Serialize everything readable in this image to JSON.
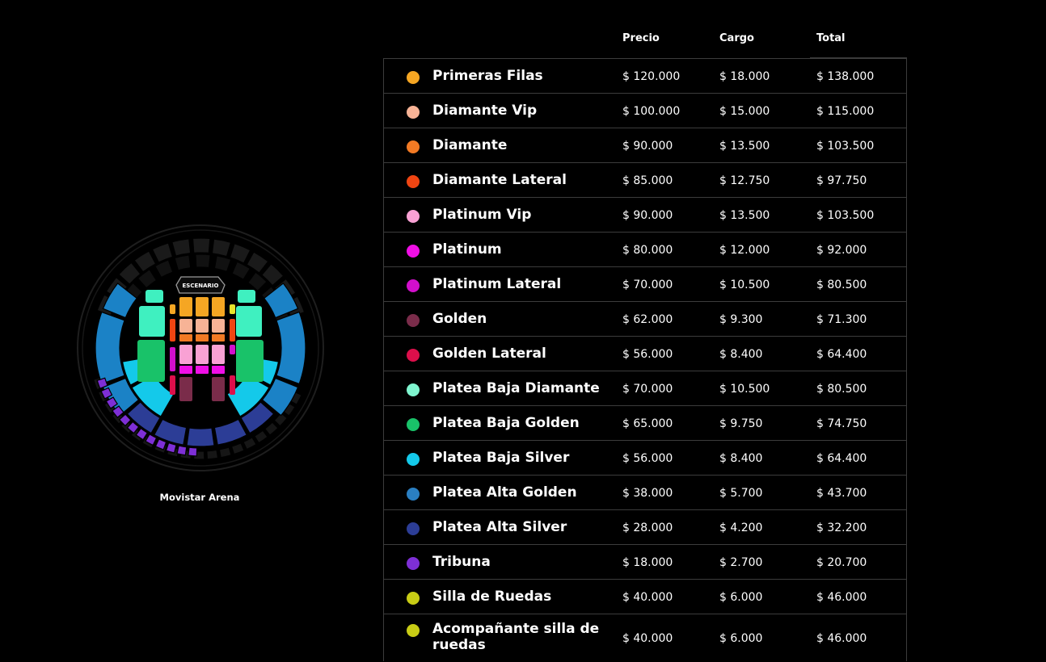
{
  "venue": {
    "name": "Movistar Arena",
    "stage_label": "ESCENARIO"
  },
  "table": {
    "headers": {
      "price": "Precio",
      "fee": "Cargo",
      "total": "Total"
    },
    "rows": [
      {
        "name": "Primeras Filas",
        "color": "#f5a623",
        "price": "$ 120.000",
        "fee": "$ 18.000",
        "total": "$ 138.000"
      },
      {
        "name": "Diamante Vip",
        "color": "#f7b396",
        "price": "$ 100.000",
        "fee": "$ 15.000",
        "total": "$ 115.000"
      },
      {
        "name": "Diamante",
        "color": "#f27a24",
        "price": "$ 90.000",
        "fee": "$ 13.500",
        "total": "$ 103.500"
      },
      {
        "name": "Diamante Lateral",
        "color": "#f04512",
        "price": "$ 85.000",
        "fee": "$ 12.750",
        "total": "$ 97.750"
      },
      {
        "name": "Platinum Vip",
        "color": "#f9a1d4",
        "price": "$ 90.000",
        "fee": "$ 13.500",
        "total": "$ 103.500"
      },
      {
        "name": "Platinum",
        "color": "#f00fe6",
        "price": "$ 80.000",
        "fee": "$ 12.000",
        "total": "$ 92.000"
      },
      {
        "name": "Platinum Lateral",
        "color": "#d20fcc",
        "price": "$ 70.000",
        "fee": "$ 10.500",
        "total": "$ 80.500"
      },
      {
        "name": "Golden",
        "color": "#7a2c4a",
        "price": "$ 62.000",
        "fee": "$ 9.300",
        "total": "$ 71.300"
      },
      {
        "name": "Golden Lateral",
        "color": "#dc0f4b",
        "price": "$ 56.000",
        "fee": "$ 8.400",
        "total": "$ 64.400"
      },
      {
        "name": "Platea Baja Diamante",
        "color": "#7ff5cf",
        "price": "$ 70.000",
        "fee": "$ 10.500",
        "total": "$ 80.500"
      },
      {
        "name": "Platea Baja Golden",
        "color": "#19c269",
        "price": "$ 65.000",
        "fee": "$ 9.750",
        "total": "$ 74.750"
      },
      {
        "name": "Platea Baja Silver",
        "color": "#14c9ea",
        "price": "$ 56.000",
        "fee": "$ 8.400",
        "total": "$ 64.400"
      },
      {
        "name": "Platea Alta Golden",
        "color": "#2a7fc2",
        "price": "$ 38.000",
        "fee": "$ 5.700",
        "total": "$ 43.700"
      },
      {
        "name": "Platea Alta Silver",
        "color": "#2c3d96",
        "price": "$ 28.000",
        "fee": "$ 4.200",
        "total": "$ 32.200"
      },
      {
        "name": "Tribuna",
        "color": "#7e2fd6",
        "price": "$ 18.000",
        "fee": "$ 2.700",
        "total": "$ 20.700"
      },
      {
        "name": "Silla de Ruedas",
        "color": "#c8cc15",
        "price": "$ 40.000",
        "fee": "$ 6.000",
        "total": "$ 46.000"
      },
      {
        "name": "Acompañante silla de ruedas",
        "color": "#c8cc15",
        "price": "$ 40.000",
        "fee": "$ 6.000",
        "total": "$ 46.000"
      }
    ]
  },
  "map_colors": {
    "primeras_filas": "#f5a623",
    "diamante_vip": "#f7b396",
    "diamante": "#f27a24",
    "diamante_lateral": "#f04512",
    "platinum_vip": "#f9a1d4",
    "platinum": "#f00fe6",
    "platinum_lateral": "#d20fcc",
    "golden": "#7a2c4a",
    "golden_lateral": "#dc0f4b",
    "platea_baja_diamante": "#3ff0c0",
    "platea_baja_golden": "#19c269",
    "platea_baja_silver": "#14c9ea",
    "platea_alta_golden": "#1b82c6",
    "platea_alta_silver": "#2c3d96",
    "tribuna": "#7e2fd6",
    "unused": "#1a1a1a"
  }
}
